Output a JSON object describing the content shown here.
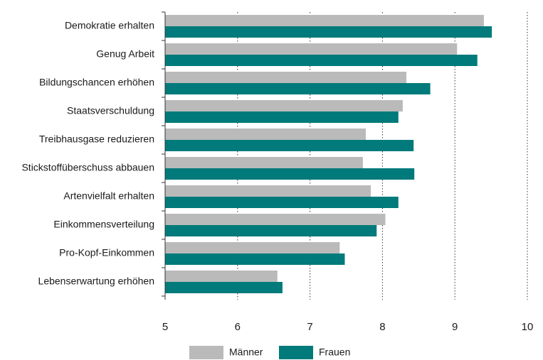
{
  "chart_data": {
    "type": "bar",
    "orientation": "horizontal",
    "categories": [
      "Demokratie erhalten",
      "Genug Arbeit",
      "Bildungschancen erhöhen",
      "Staatsverschuldung",
      "Treibhausgase reduzieren",
      "Stickstoffüberschuss abbauen",
      "Artenvielfalt erhalten",
      "Einkommensverteilung",
      "Pro-Kopf-Einkommen",
      "Lebenserwartung erhöhen"
    ],
    "series": [
      {
        "name": "Männer",
        "color": "#bababa",
        "values": [
          9.4,
          9.03,
          8.33,
          8.28,
          7.77,
          7.73,
          7.84,
          8.04,
          7.41,
          6.55
        ]
      },
      {
        "name": "Frauen",
        "color": "#007a7a",
        "values": [
          9.51,
          9.31,
          8.66,
          8.22,
          8.43,
          8.44,
          8.22,
          7.92,
          7.48,
          6.62
        ]
      }
    ],
    "xlim": [
      5,
      10
    ],
    "xticks": [
      5,
      6,
      7,
      8,
      9,
      10
    ],
    "grid": "vertical dotted",
    "legend_position": "bottom"
  }
}
